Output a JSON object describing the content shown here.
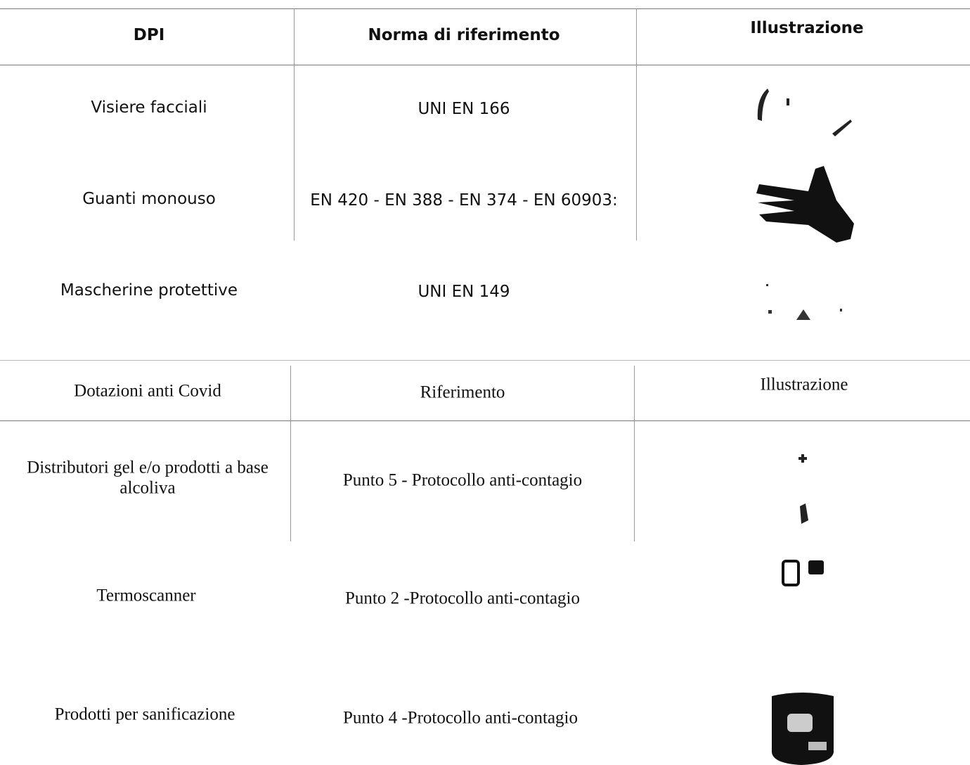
{
  "tables": [
    {
      "header": [
        "DPI",
        "Norma di riferimento",
        "Illustrazione"
      ],
      "rows": [
        [
          "Visiere facciali",
          "UNI EN 166"
        ],
        [
          "Guanti monouso",
          "EN 420 - EN 388 - EN 374 - EN 60903:"
        ],
        [
          "Mascherine protettive",
          "UNI EN 149"
        ]
      ]
    },
    {
      "header": [
        "Dotazioni anti Covid",
        "Riferimento",
        "Illustrazione"
      ],
      "rows": [
        [
          "Distributori gel e/o prodotti a base alcoliva",
          "Punto 5 - Protocollo anti-contagio"
        ],
        [
          "Termoscanner",
          "Punto 2 -Protocollo anti-contagio"
        ],
        [
          "Prodotti per sanificazione",
          "Punto 4 -Protocollo anti-contagio"
        ]
      ]
    }
  ]
}
